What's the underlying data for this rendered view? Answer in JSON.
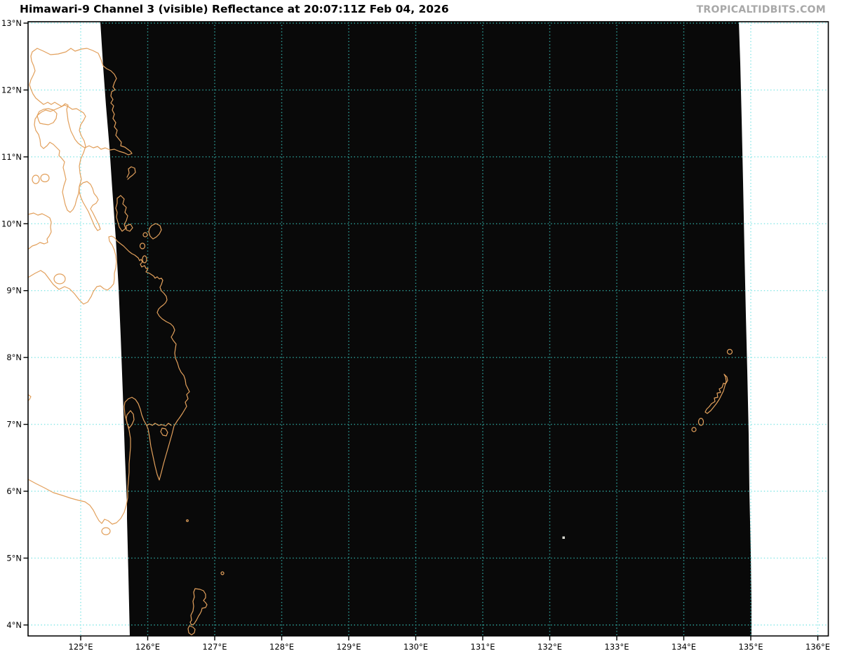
{
  "header": {
    "title": "Himawari-9 Channel 3 (visible) Reflectance at 20:07:11Z Feb 04, 2026",
    "watermark": "TROPICALTIDBITS.COM"
  },
  "map": {
    "satellite": "Himawari-9",
    "channel": "Channel 3 (visible)",
    "product": "Reflectance",
    "valid_time": "20:07:11Z Feb 04, 2026",
    "axes": {
      "lat_ticks": [
        {
          "label": "13°N",
          "value": 13
        },
        {
          "label": "12°N",
          "value": 12
        },
        {
          "label": "11°N",
          "value": 11
        },
        {
          "label": "10°N",
          "value": 10
        },
        {
          "label": "9°N",
          "value": 9
        },
        {
          "label": "8°N",
          "value": 8
        },
        {
          "label": "7°N",
          "value": 7
        },
        {
          "label": "6°N",
          "value": 6
        },
        {
          "label": "5°N",
          "value": 5
        },
        {
          "label": "4°N",
          "value": 4
        }
      ],
      "lon_ticks": [
        {
          "label": "125°E",
          "value": 125
        },
        {
          "label": "126°E",
          "value": 126
        },
        {
          "label": "127°E",
          "value": 127
        },
        {
          "label": "128°E",
          "value": 128
        },
        {
          "label": "129°E",
          "value": 129
        },
        {
          "label": "130°E",
          "value": 130
        },
        {
          "label": "131°E",
          "value": 131
        },
        {
          "label": "132°E",
          "value": 132
        },
        {
          "label": "133°E",
          "value": 133
        },
        {
          "label": "134°E",
          "value": 134
        },
        {
          "label": "135°E",
          "value": 135
        },
        {
          "label": "136°E",
          "value": 136
        }
      ]
    },
    "colors": {
      "background": "#FFFFFF",
      "swath_fill": "#090909",
      "coastline": "#E2A05C",
      "grid_on_white": "#82E6E6",
      "grid_on_black": "#2FA69F",
      "axis": "#000000",
      "title_text": "#000000",
      "watermark_text": "#A8A8A8"
    }
  }
}
